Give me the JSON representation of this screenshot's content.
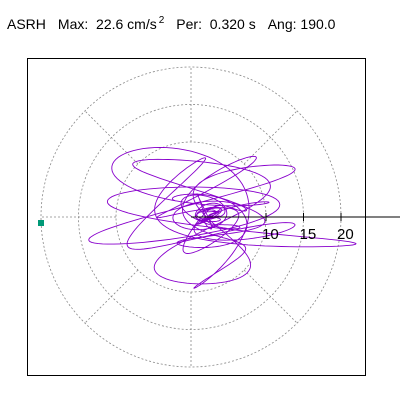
{
  "header": {
    "station": "ASRH",
    "max_label": "Max:",
    "max_value": "22.6",
    "max_unit": "cm/s",
    "max_unit_exp": "2",
    "per_label": "Per:",
    "per_value": "0.320 s",
    "ang_label": "Ang:",
    "ang_value": "190.0"
  },
  "chart_data": {
    "type": "line",
    "subtype": "polar particle-motion (hodogram)",
    "title": "ASRH   Max: 22.6 cm/s2   Per: 0.320 s   Ang: 190.0",
    "units": "cm/s2",
    "max_amplitude": 22.6,
    "period_s": 0.32,
    "angle_deg": 190.0,
    "radial_ticks": [
      10,
      15,
      20
    ],
    "radial_max": 20,
    "grid_rings": [
      10,
      15,
      20
    ],
    "grid_spokes_deg": [
      0,
      45,
      90,
      135,
      180,
      225,
      270,
      315
    ],
    "grid": true,
    "series_color": "#8800cc",
    "marker_color": "#009977",
    "marker_point": [
      -20.0,
      -0.8
    ],
    "trace_extent": {
      "x": [
        -17,
        22
      ],
      "y": [
        -9.5,
        10
      ]
    }
  }
}
